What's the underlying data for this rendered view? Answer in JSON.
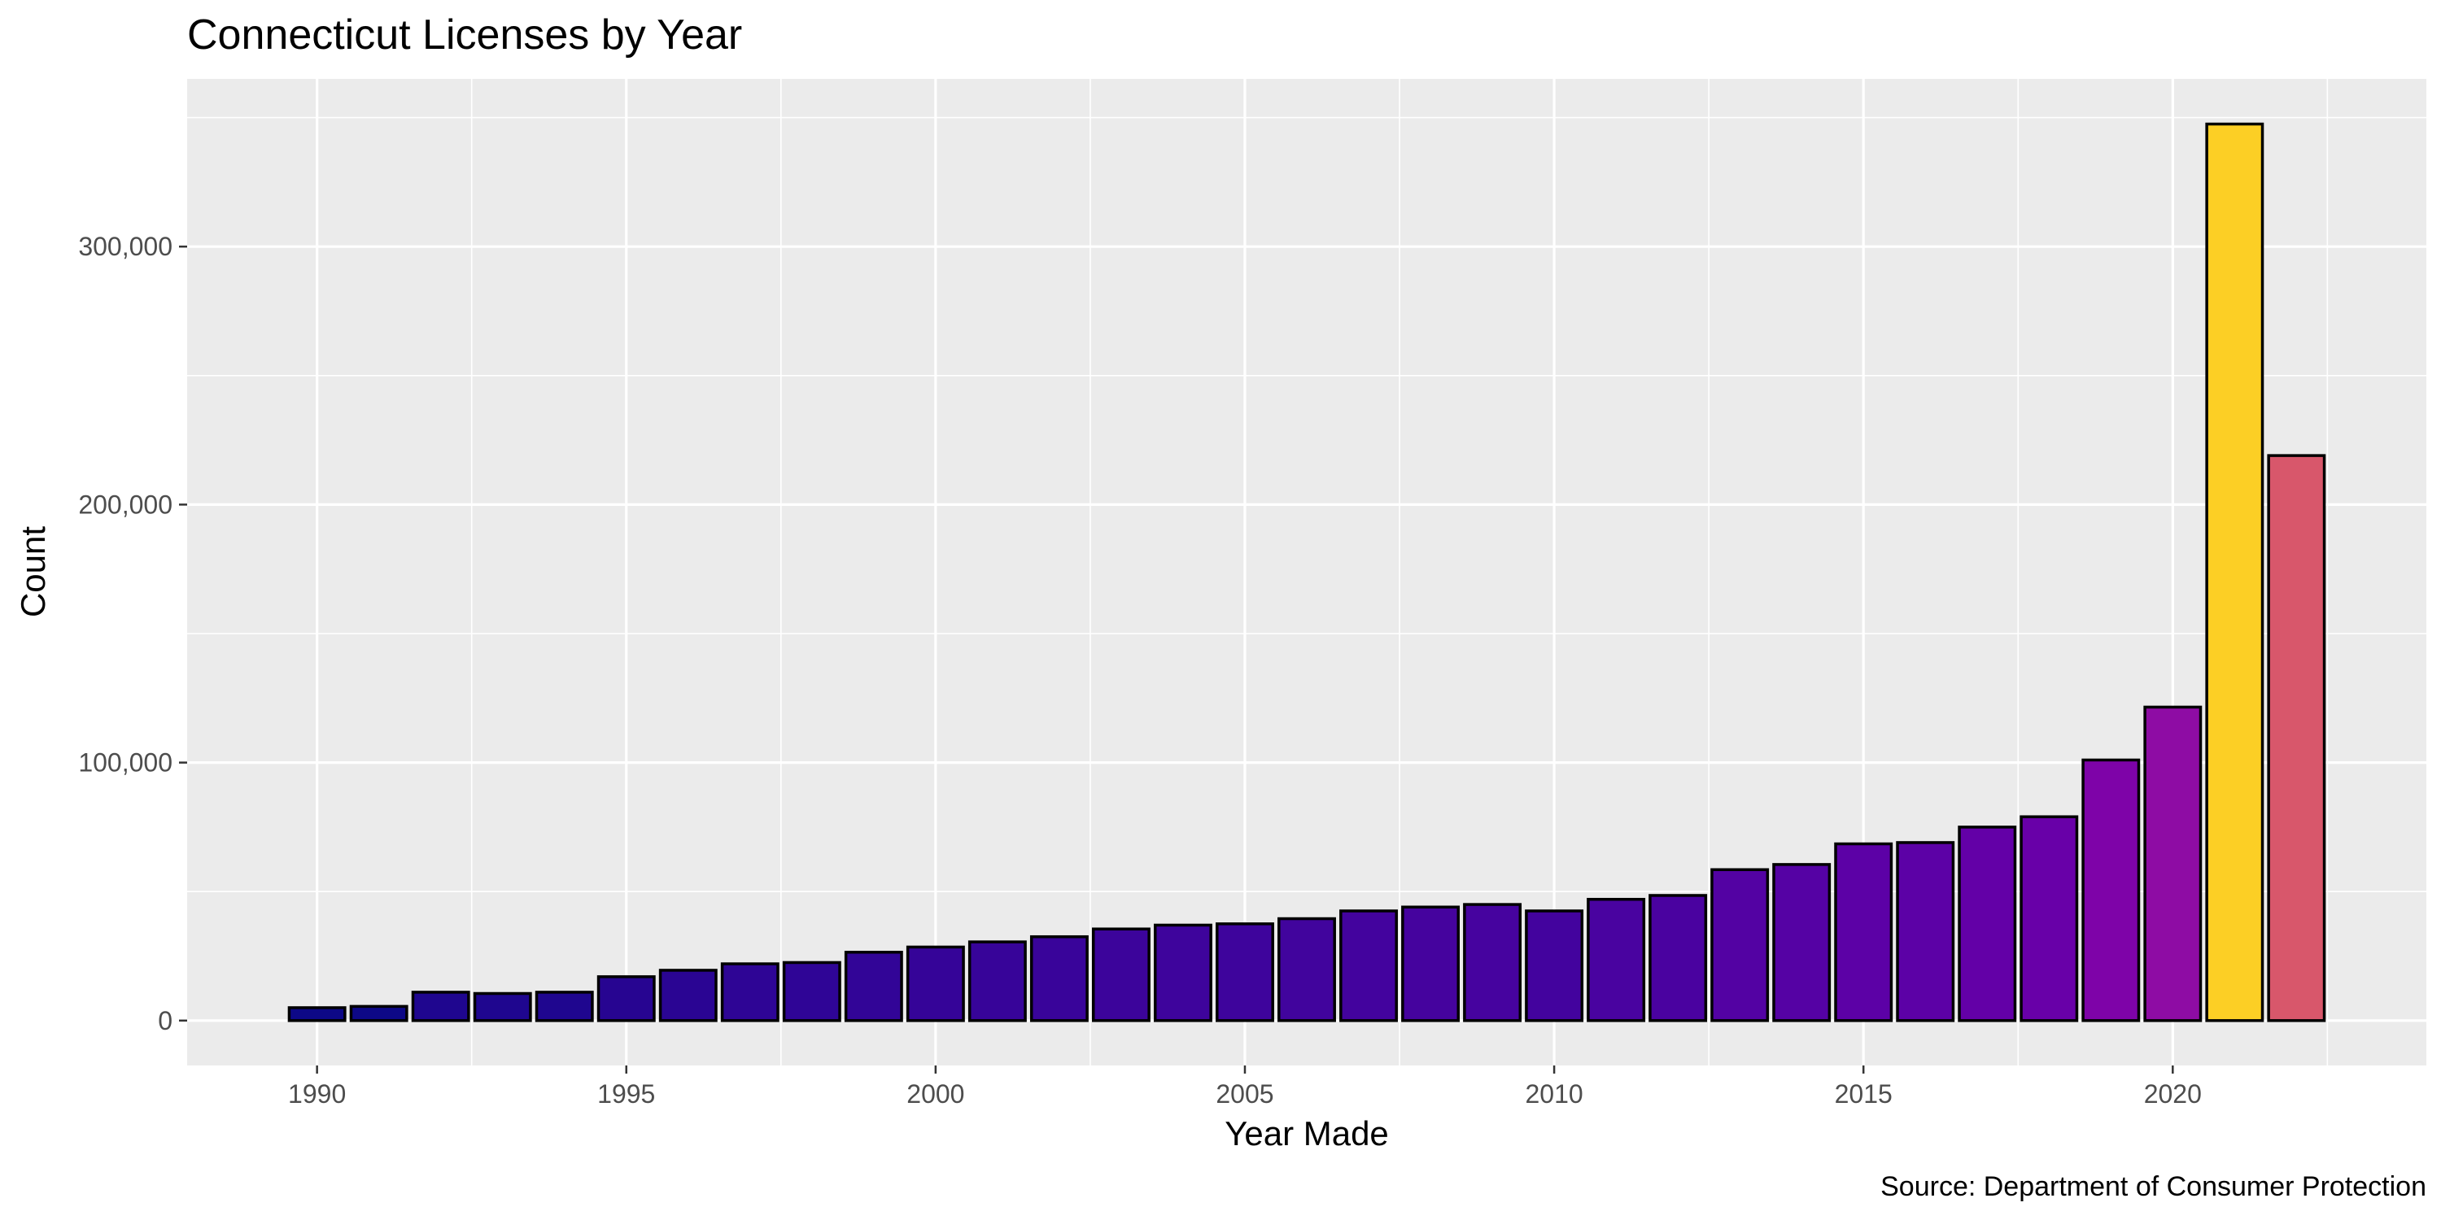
{
  "chart_data": {
    "type": "bar",
    "title": "Connecticut Licenses by Year",
    "xlabel": "Year Made",
    "ylabel": "Count",
    "caption": "Source: Department of Consumer Protection",
    "x": [
      1990,
      1991,
      1992,
      1993,
      1994,
      1995,
      1996,
      1997,
      1998,
      1999,
      2000,
      2001,
      2002,
      2003,
      2004,
      2005,
      2006,
      2007,
      2008,
      2009,
      2010,
      2011,
      2012,
      2013,
      2014,
      2015,
      2016,
      2017,
      2018,
      2019,
      2020,
      2021,
      2022
    ],
    "values": [
      5000,
      5500,
      11000,
      10500,
      11000,
      17000,
      19500,
      22000,
      22500,
      26500,
      28500,
      30500,
      32500,
      35500,
      37000,
      37500,
      39500,
      42500,
      44000,
      45000,
      42500,
      47000,
      48500,
      58500,
      60500,
      68500,
      69000,
      75000,
      79000,
      101000,
      121500,
      347500,
      219000
    ],
    "bar_colors": [
      "#0d0887",
      "#0d0887",
      "#1f068f",
      "#1f068f",
      "#1f068f",
      "#270591",
      "#2a0593",
      "#2e0595",
      "#2f0596",
      "#320597",
      "#350498",
      "#370499",
      "#39049a",
      "#3c049b",
      "#3e049c",
      "#3e049c",
      "#41049d",
      "#43039e",
      "#45039e",
      "#46039f",
      "#43039e",
      "#4903a0",
      "#4a02a0",
      "#5302a3",
      "#5502a4",
      "#5c01a6",
      "#5c01a6",
      "#6300a7",
      "#6800a8",
      "#7e03a8",
      "#8e0ca4",
      "#fccf25",
      "#d8576b"
    ],
    "x_ticks": [
      1990,
      1995,
      2000,
      2005,
      2010,
      2015,
      2020
    ],
    "x_tick_labels": [
      "1990",
      "1995",
      "2000",
      "2005",
      "2010",
      "2015",
      "2020"
    ],
    "y_ticks": [
      0,
      100000,
      200000,
      300000
    ],
    "y_tick_labels": [
      "0",
      "100,000",
      "200,000",
      "300,000"
    ],
    "xlim": [
      1987.9,
      2024.1
    ],
    "ylim": [
      -17400,
      365000
    ],
    "panel_background": "#ebebeb",
    "grid_color": "#ffffff",
    "grid": true,
    "legend": "none"
  }
}
